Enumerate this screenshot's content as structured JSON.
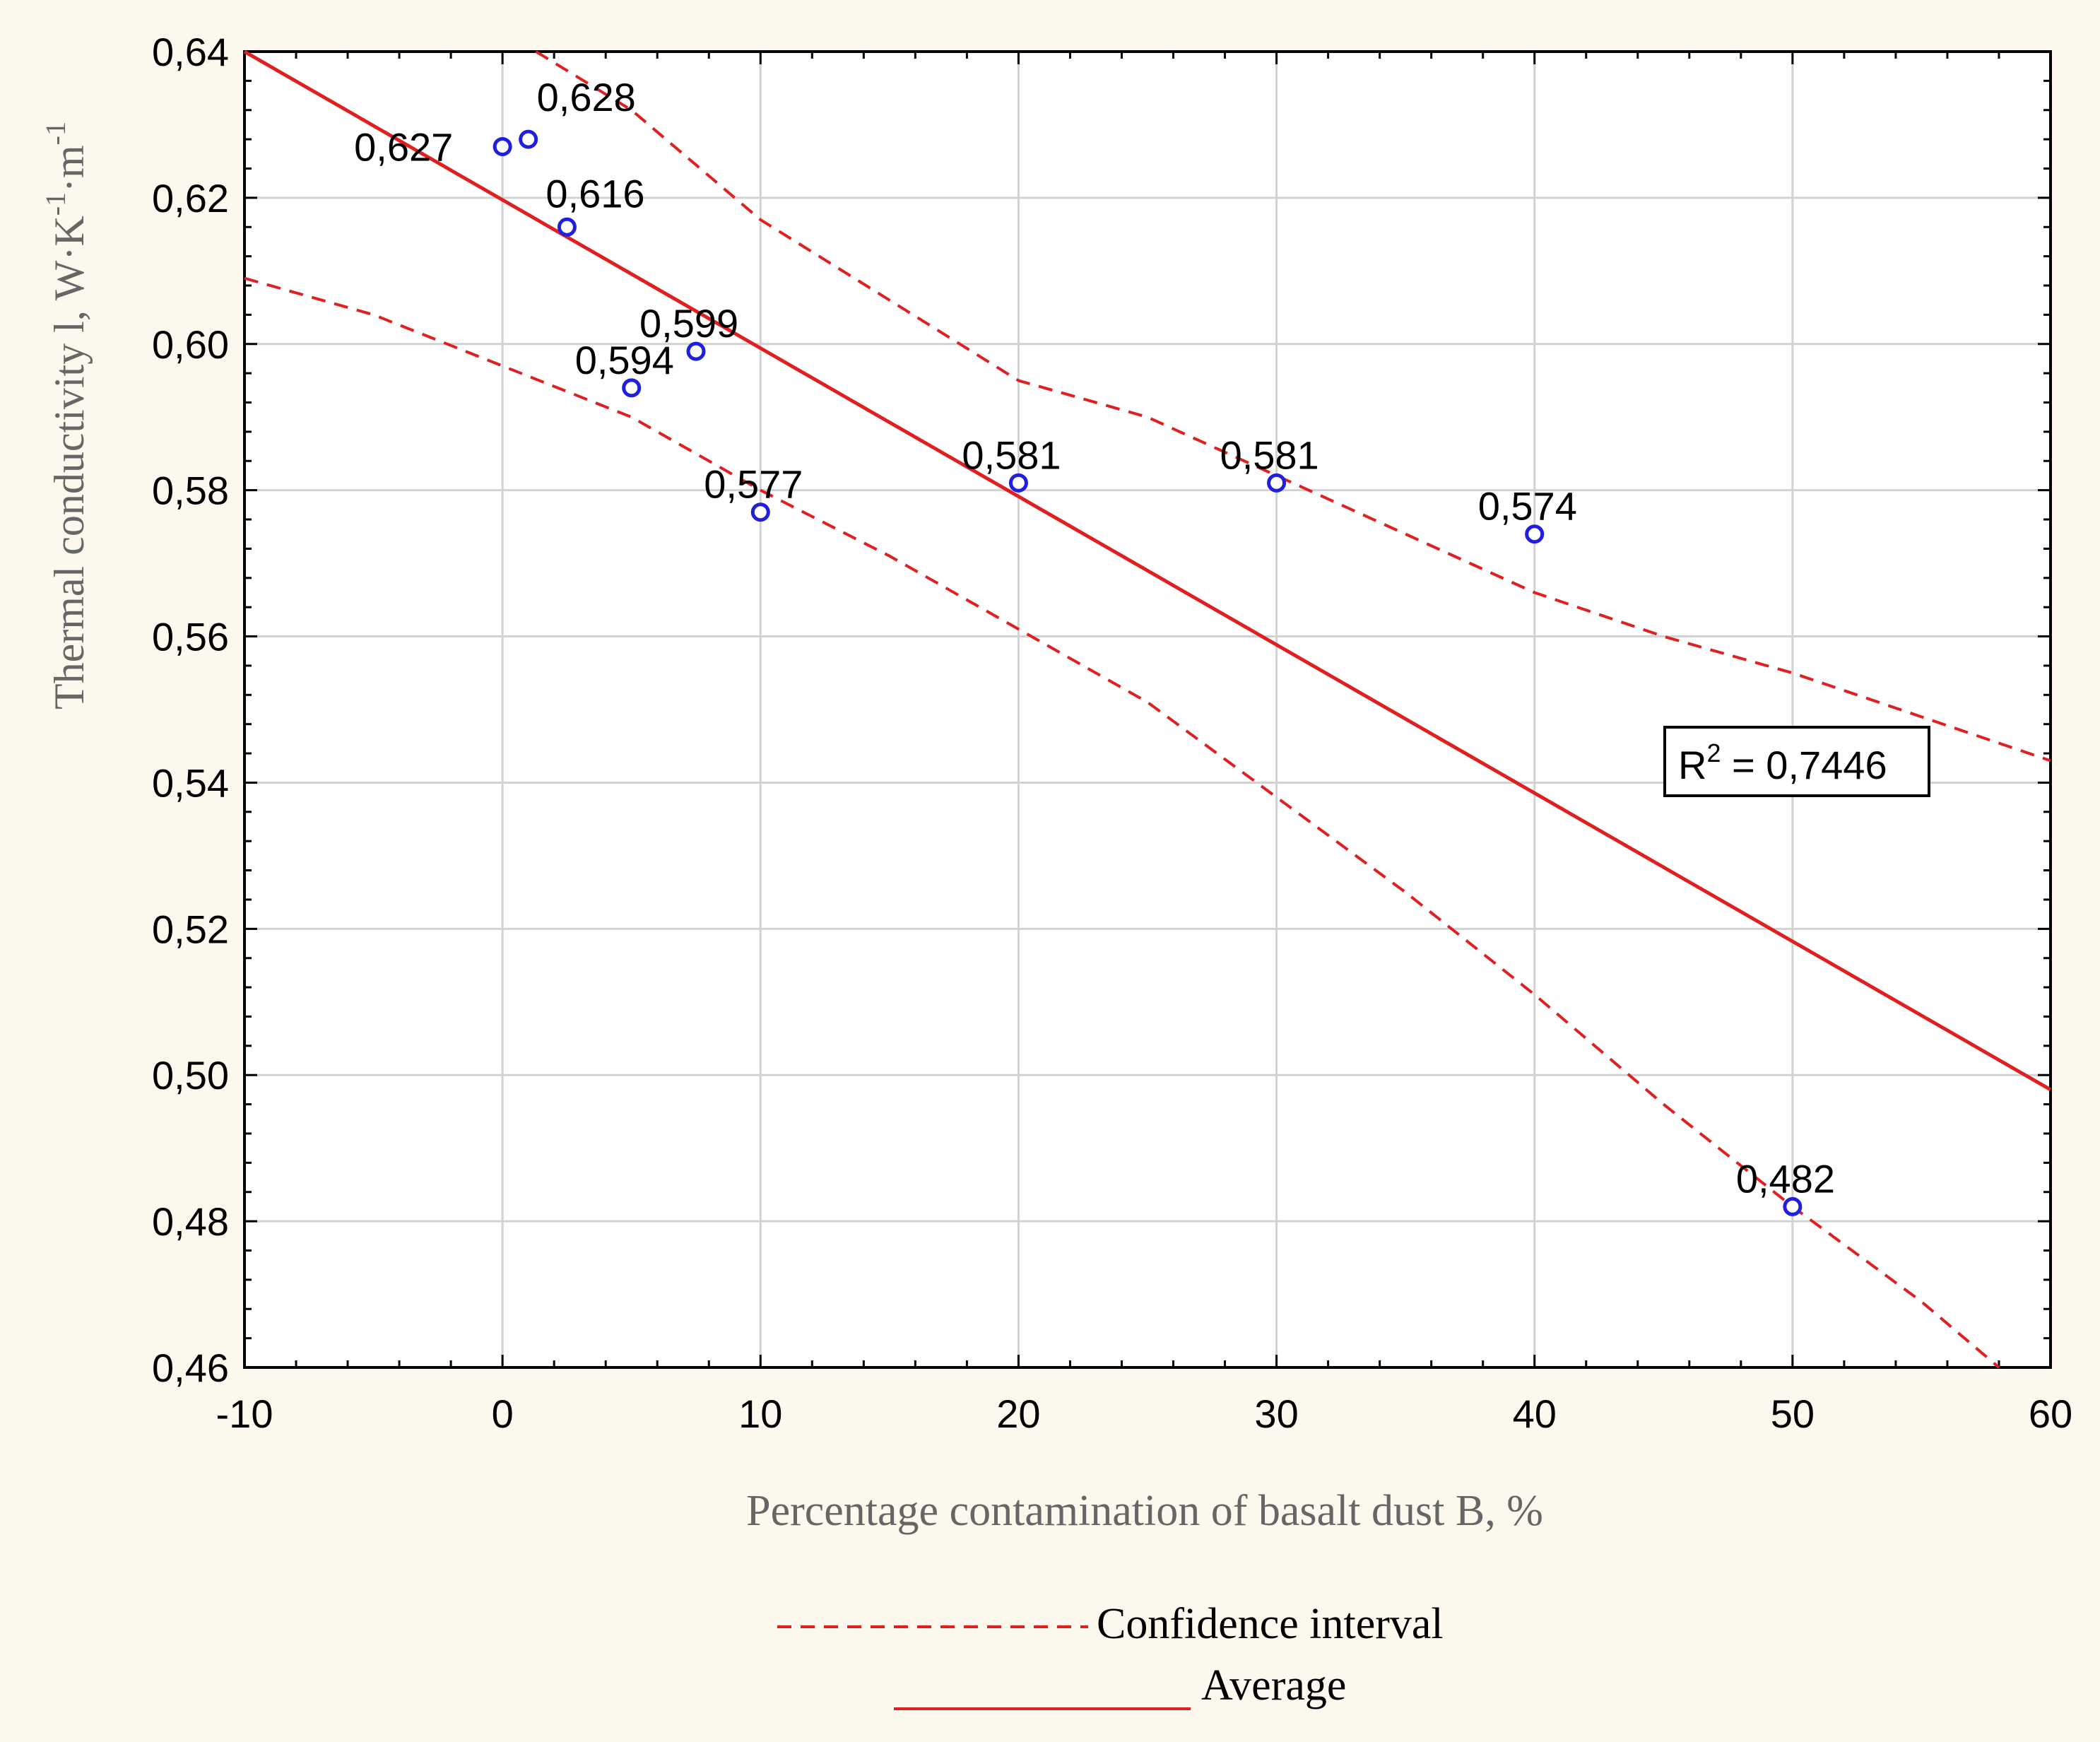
{
  "chart_data": {
    "type": "scatter",
    "xlabel": "Percentage contamination of basalt dust B, %",
    "ylabel": "Thermal conductivity l, W·K⁻¹·m⁻¹",
    "xlim": [
      -10,
      60
    ],
    "ylim": [
      0.46,
      0.64
    ],
    "x_ticks": [
      -10,
      0,
      10,
      20,
      30,
      40,
      50,
      60
    ],
    "y_ticks": [
      0.46,
      0.48,
      0.5,
      0.52,
      0.54,
      0.56,
      0.58,
      0.6,
      0.62,
      0.64
    ],
    "x_tick_labels": [
      "-10",
      "0",
      "10",
      "20",
      "30",
      "40",
      "50",
      "60"
    ],
    "y_tick_labels": [
      "0,46",
      "0,48",
      "0,50",
      "0,52",
      "0,54",
      "0,56",
      "0,58",
      "0,60",
      "0,62",
      "0,64"
    ],
    "grid": true,
    "points": [
      {
        "x": 0,
        "y": 0.627,
        "label": "0,627"
      },
      {
        "x": 1,
        "y": 0.628,
        "label": "0,628"
      },
      {
        "x": 2.5,
        "y": 0.616,
        "label": "0,616"
      },
      {
        "x": 5,
        "y": 0.594,
        "label": "0,594"
      },
      {
        "x": 7.5,
        "y": 0.599,
        "label": "0,599"
      },
      {
        "x": 10,
        "y": 0.577,
        "label": "0,577"
      },
      {
        "x": 20,
        "y": 0.581,
        "label": "0,581"
      },
      {
        "x": 30,
        "y": 0.581,
        "label": "0,581"
      },
      {
        "x": 40,
        "y": 0.574,
        "label": "0,574"
      },
      {
        "x": 50,
        "y": 0.482,
        "label": "0,482"
      }
    ],
    "fit_line": {
      "name": "Average",
      "x": [
        -10,
        60
      ],
      "y": [
        0.64,
        0.498
      ]
    },
    "confidence_upper": {
      "name": "Confidence interval",
      "x": [
        1.3,
        5,
        10,
        15,
        20,
        25,
        30,
        35,
        40,
        45,
        50,
        55,
        60
      ],
      "y": [
        0.64,
        0.632,
        0.617,
        0.606,
        0.595,
        0.59,
        0.582,
        0.574,
        0.566,
        0.56,
        0.555,
        0.549,
        0.543
      ]
    },
    "confidence_lower": {
      "name": "Confidence interval",
      "x": [
        -10,
        -5,
        0,
        5,
        10,
        15,
        20,
        25,
        30,
        35,
        40,
        45,
        50,
        55,
        58
      ],
      "y": [
        0.609,
        0.604,
        0.597,
        0.59,
        0.58,
        0.571,
        0.561,
        0.551,
        0.538,
        0.525,
        0.511,
        0.496,
        0.482,
        0.469,
        0.46
      ]
    },
    "annotation": {
      "r2_prefix": "R",
      "r2_sup": "2",
      "r2_value": " = 0,7446"
    },
    "legend": {
      "position": "bottom",
      "entries": [
        "Confidence interval",
        "Average"
      ]
    },
    "colors": {
      "points": "#1f1fdc",
      "lines": "#e02020",
      "grid": "#d2d2d2",
      "background": "#fdf8ee",
      "plot": "#ffffff"
    }
  },
  "text": {
    "y_axis_main": "Thermal conductivity l, W·K",
    "y_axis_sup1": "-1",
    "y_axis_mid": "·m",
    "y_axis_sup2": "-1",
    "x_axis": "Percentage contamination of basalt dust B, %",
    "legend_ci": "Confidence interval",
    "legend_avg": "Average"
  }
}
